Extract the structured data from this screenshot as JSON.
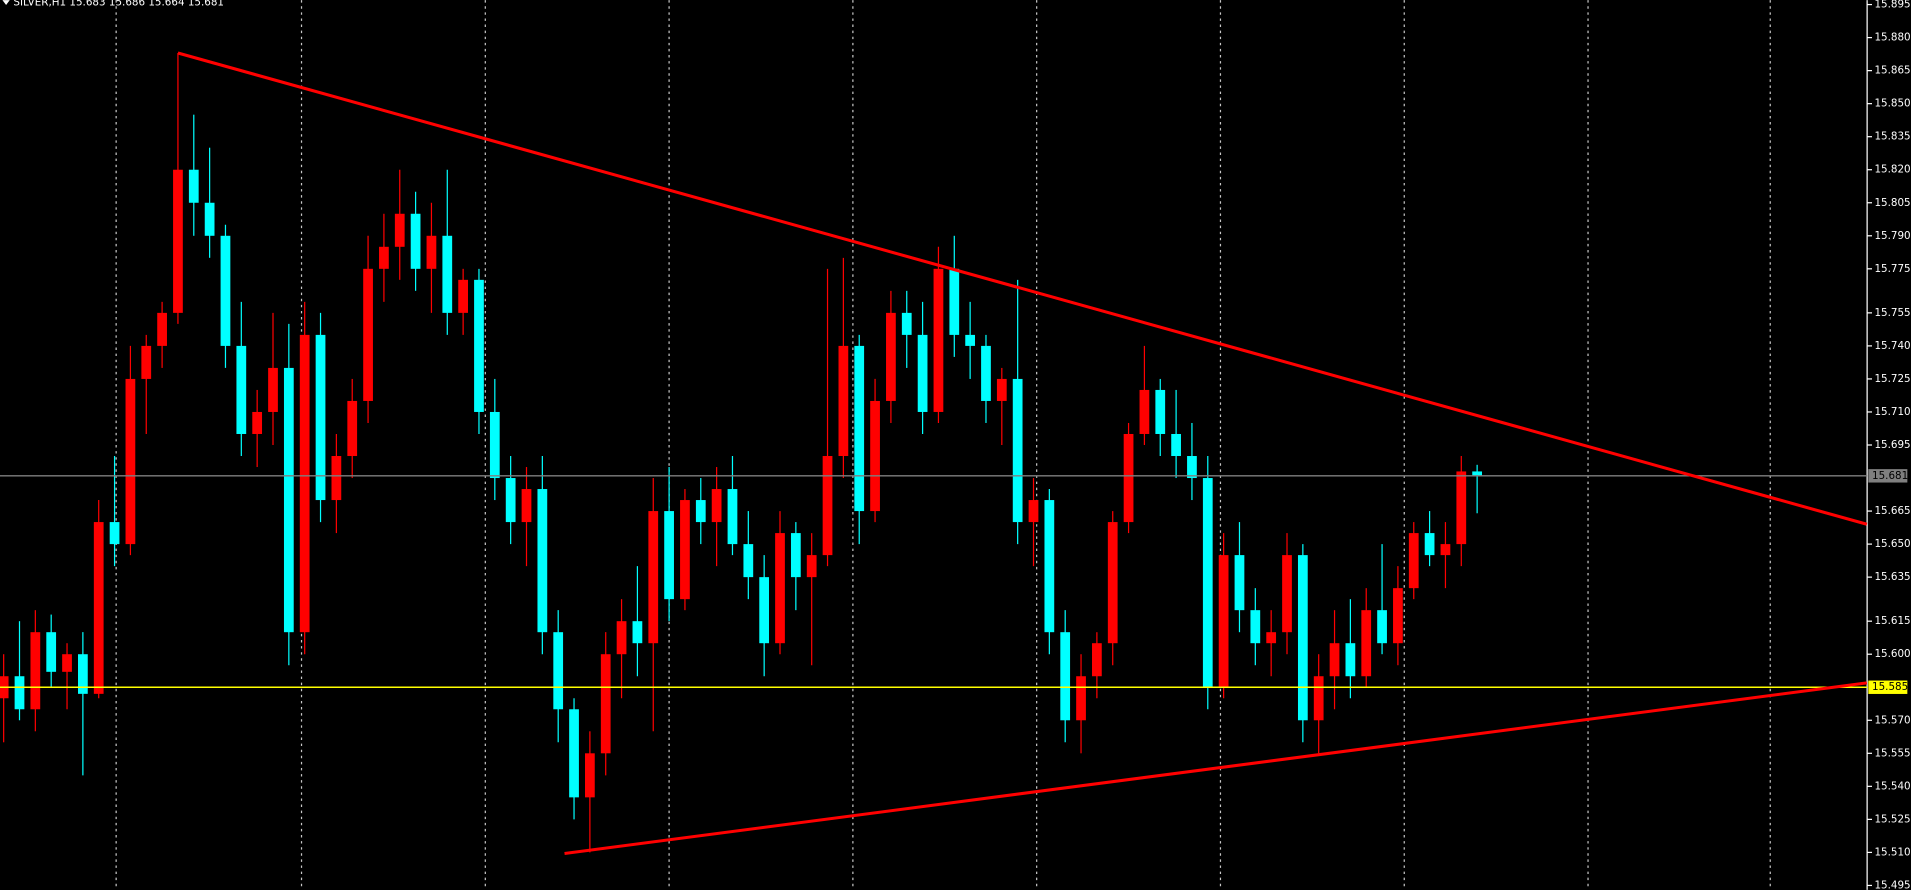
{
  "chart_data": {
    "type": "candlestick",
    "title": "SILVER,H1 15.683 15.686 15.664 15.681",
    "bull_color": "#ff0000",
    "bear_color": "#00ffff",
    "xlim": [
      -0.2308,
      117.615
    ],
    "xticks": [
      7.1,
      18.8,
      30.4,
      42,
      53.6,
      65.2,
      76.8,
      88.4,
      100,
      111.5
    ],
    "ylim": [
      15.493,
      15.897
    ],
    "yticks": [
      15.895,
      {
        "value": 15.88,
        "label": "15.880"
      },
      15.865,
      {
        "value": 15.85,
        "label": "15.850"
      },
      15.835,
      {
        "value": 15.82,
        "label": "15.820"
      },
      15.805,
      {
        "value": 15.79,
        "label": "15.790"
      },
      15.775,
      15.755,
      {
        "value": 15.74,
        "label": "15.740"
      },
      15.725,
      {
        "value": 15.71,
        "label": "15.710"
      },
      15.695,
      15.665,
      {
        "value": 15.65,
        "label": "15.650"
      },
      15.635,
      15.615,
      {
        "value": 15.6,
        "label": "15.600"
      },
      {
        "value": 15.57,
        "label": "15.570"
      },
      15.555,
      {
        "value": 15.54,
        "label": "15.540"
      },
      15.525,
      {
        "value": 15.51,
        "label": "15.510"
      },
      15.495
    ],
    "hlines": [
      {
        "value": 15.681,
        "color": "#7f7f7f"
      },
      {
        "value": 15.585,
        "color": "#ffff00"
      }
    ],
    "trendlines": [
      {
        "color": "#ff0000",
        "x": [
          11,
          117.6
        ],
        "y": [
          15.873,
          15.659
        ]
      },
      {
        "color": "#ff0000",
        "x": [
          35.4,
          117.6
        ],
        "y": [
          15.5095,
          15.587
        ]
      }
    ],
    "ohlc": [
      [
        15.58,
        15.6,
        15.56,
        15.59
      ],
      [
        15.59,
        15.615,
        15.57,
        15.575
      ],
      [
        15.575,
        15.62,
        15.565,
        15.61
      ],
      [
        15.61,
        15.618,
        15.585,
        15.592
      ],
      [
        15.592,
        15.605,
        15.575,
        15.6
      ],
      [
        15.6,
        15.61,
        15.545,
        15.582
      ],
      [
        15.582,
        15.67,
        15.58,
        15.66
      ],
      [
        15.66,
        15.69,
        15.64,
        15.65
      ],
      [
        15.65,
        15.74,
        15.645,
        15.725
      ],
      [
        15.725,
        15.745,
        15.7,
        15.74
      ],
      [
        15.74,
        15.76,
        15.73,
        15.755
      ],
      [
        15.755,
        15.873,
        15.75,
        15.82
      ],
      [
        15.82,
        15.845,
        15.79,
        15.805
      ],
      [
        15.805,
        15.83,
        15.78,
        15.79
      ],
      [
        15.79,
        15.795,
        15.73,
        15.74
      ],
      [
        15.74,
        15.76,
        15.69,
        15.7
      ],
      [
        15.7,
        15.72,
        15.685,
        15.71
      ],
      [
        15.71,
        15.755,
        15.695,
        15.73
      ],
      [
        15.73,
        15.75,
        15.595,
        15.61
      ],
      [
        15.61,
        15.76,
        15.6,
        15.745
      ],
      [
        15.745,
        15.755,
        15.66,
        15.67
      ],
      [
        15.67,
        15.7,
        15.655,
        15.69
      ],
      [
        15.69,
        15.725,
        15.68,
        15.715
      ],
      [
        15.715,
        15.79,
        15.705,
        15.775
      ],
      [
        15.775,
        15.8,
        15.76,
        15.785
      ],
      [
        15.785,
        15.82,
        15.77,
        15.8
      ],
      [
        15.8,
        15.81,
        15.765,
        15.775
      ],
      [
        15.775,
        15.805,
        15.755,
        15.79
      ],
      [
        15.79,
        15.82,
        15.745,
        15.755
      ],
      [
        15.755,
        15.775,
        15.745,
        15.77
      ],
      [
        15.77,
        15.775,
        15.7,
        15.71
      ],
      [
        15.71,
        15.725,
        15.67,
        15.68
      ],
      [
        15.68,
        15.69,
        15.65,
        15.66
      ],
      [
        15.66,
        15.685,
        15.64,
        15.675
      ],
      [
        15.675,
        15.69,
        15.6,
        15.61
      ],
      [
        15.61,
        15.62,
        15.56,
        15.575
      ],
      [
        15.575,
        15.58,
        15.525,
        15.535
      ],
      [
        15.535,
        15.565,
        15.51,
        15.555
      ],
      [
        15.555,
        15.61,
        15.545,
        15.6
      ],
      [
        15.6,
        15.625,
        15.58,
        15.615
      ],
      [
        15.615,
        15.64,
        15.59,
        15.605
      ],
      [
        15.605,
        15.68,
        15.565,
        15.665
      ],
      [
        15.665,
        15.685,
        15.615,
        15.625
      ],
      [
        15.625,
        15.675,
        15.62,
        15.67
      ],
      [
        15.67,
        15.68,
        15.65,
        15.66
      ],
      [
        15.66,
        15.685,
        15.64,
        15.675
      ],
      [
        15.675,
        15.69,
        15.645,
        15.65
      ],
      [
        15.65,
        15.665,
        15.625,
        15.635
      ],
      [
        15.635,
        15.645,
        15.59,
        15.605
      ],
      [
        15.605,
        15.665,
        15.6,
        15.655
      ],
      [
        15.655,
        15.66,
        15.62,
        15.635
      ],
      [
        15.635,
        15.655,
        15.595,
        15.645
      ],
      [
        15.645,
        15.775,
        15.64,
        15.69
      ],
      [
        15.69,
        15.78,
        15.68,
        15.74
      ],
      [
        15.74,
        15.745,
        15.65,
        15.665
      ],
      [
        15.665,
        15.725,
        15.66,
        15.715
      ],
      [
        15.715,
        15.765,
        15.705,
        15.755
      ],
      [
        15.755,
        15.765,
        15.73,
        15.745
      ],
      [
        15.745,
        15.76,
        15.7,
        15.71
      ],
      [
        15.71,
        15.785,
        15.705,
        15.775
      ],
      [
        15.775,
        15.79,
        15.735,
        15.745
      ],
      [
        15.745,
        15.76,
        15.725,
        15.74
      ],
      [
        15.74,
        15.745,
        15.705,
        15.715
      ],
      [
        15.715,
        15.73,
        15.695,
        15.725
      ],
      [
        15.725,
        15.77,
        15.65,
        15.66
      ],
      [
        15.66,
        15.68,
        15.64,
        15.67
      ],
      [
        15.67,
        15.675,
        15.6,
        15.61
      ],
      [
        15.61,
        15.62,
        15.56,
        15.57
      ],
      [
        15.57,
        15.6,
        15.555,
        15.59
      ],
      [
        15.59,
        15.61,
        15.58,
        15.605
      ],
      [
        15.605,
        15.665,
        15.595,
        15.66
      ],
      [
        15.66,
        15.705,
        15.655,
        15.7
      ],
      [
        15.7,
        15.74,
        15.695,
        15.72
      ],
      [
        15.72,
        15.725,
        15.69,
        15.7
      ],
      [
        15.7,
        15.72,
        15.68,
        15.69
      ],
      [
        15.69,
        15.705,
        15.67,
        15.68
      ],
      [
        15.68,
        15.69,
        15.575,
        15.585
      ],
      [
        15.585,
        15.655,
        15.58,
        15.645
      ],
      [
        15.645,
        15.66,
        15.61,
        15.62
      ],
      [
        15.62,
        15.63,
        15.595,
        15.605
      ],
      [
        15.605,
        15.62,
        15.59,
        15.61
      ],
      [
        15.61,
        15.655,
        15.6,
        15.645
      ],
      [
        15.645,
        15.65,
        15.56,
        15.57
      ],
      [
        15.57,
        15.6,
        15.555,
        15.59
      ],
      [
        15.59,
        15.62,
        15.575,
        15.605
      ],
      [
        15.605,
        15.625,
        15.58,
        15.59
      ],
      [
        15.59,
        15.63,
        15.585,
        15.62
      ],
      [
        15.62,
        15.65,
        15.6,
        15.605
      ],
      [
        15.605,
        15.64,
        15.595,
        15.63
      ],
      [
        15.63,
        15.66,
        15.625,
        15.655
      ],
      [
        15.655,
        15.665,
        15.64,
        15.645
      ],
      [
        15.645,
        15.66,
        15.63,
        15.65
      ],
      [
        15.65,
        15.69,
        15.64,
        15.683
      ],
      [
        15.683,
        15.686,
        15.664,
        15.681
      ]
    ]
  }
}
